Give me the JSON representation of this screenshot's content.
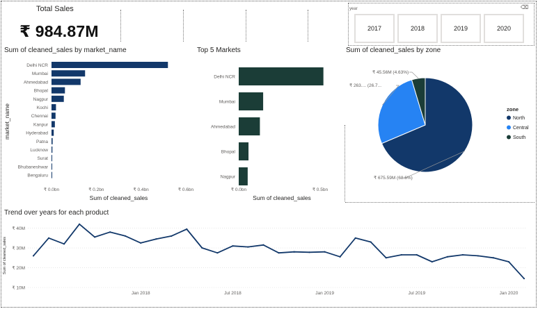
{
  "card": {
    "title": "Total Sales",
    "value": "₹ 984.87M"
  },
  "slicer": {
    "header": "year",
    "eraser": "⌫",
    "years": [
      "2017",
      "2018",
      "2019",
      "2020"
    ]
  },
  "market_chart": {
    "title": "Sum of cleaned_sales by market_name",
    "ylabel": "market_name",
    "xlabel": "Sum of cleaned_sales",
    "categories": [
      "Delhi NCR",
      "Mumbai",
      "Ahmedabad",
      "Bhopal",
      "Nagpur",
      "Kochi",
      "Chennai",
      "Kanpur",
      "Hyderabad",
      "Patna",
      "Lucknow",
      "Surat",
      "Bhubaneshwar",
      "Bengaluru"
    ],
    "values": [
      0.52,
      0.15,
      0.13,
      0.06,
      0.055,
      0.02,
      0.018,
      0.015,
      0.01,
      0.005,
      0.004,
      0.003,
      0.002,
      0.001
    ],
    "ticks": [
      "₹ 0.0bn",
      "₹ 0.2bn",
      "₹ 0.4bn",
      "₹ 0.6bn"
    ],
    "tick_values": [
      0,
      0.2,
      0.4,
      0.6
    ],
    "xmax": 0.6,
    "color": "#12386a"
  },
  "top5_chart": {
    "title": "Top 5 Markets",
    "xlabel": "Sum of cleaned_sales",
    "categories": [
      "Delhi NCR",
      "Mumbai",
      "Ahmedabad",
      "Bhopal",
      "Nagpur"
    ],
    "values": [
      0.52,
      0.15,
      0.13,
      0.06,
      0.055
    ],
    "ticks": [
      "₹ 0.0bn",
      "₹ 0.5bn"
    ],
    "tick_values": [
      0,
      0.5
    ],
    "xmax": 0.53,
    "color": "#1b3d37"
  },
  "zone_chart": {
    "title": "Sum of cleaned_sales by zone",
    "legend_title": "zone",
    "slices": [
      {
        "name": "North",
        "value": 675.59,
        "label": "₹ 675.59M (68.6%)",
        "color": "#12386a"
      },
      {
        "name": "Central",
        "value": 263.72,
        "label": "₹ 263.... (26.7...",
        "color": "#2683f3"
      },
      {
        "name": "South",
        "value": 45.56,
        "label": "₹ 45.56M (4.63%)",
        "color": "#1b3d37"
      }
    ]
  },
  "trend_chart": {
    "title": "Trend over years for each product",
    "ylabel": "Sum of cleaned_sales",
    "y_ticks": [
      "₹ 10M",
      "₹ 20M",
      "₹ 30M",
      "₹ 40M"
    ],
    "y_tick_values": [
      10,
      20,
      30,
      40
    ],
    "ylim": [
      10,
      43
    ],
    "x_ticks": [
      "Jan 2018",
      "Jul 2018",
      "Jan 2019",
      "Jul 2019",
      "Jan 2020"
    ],
    "x_tick_index": [
      7,
      13,
      19,
      25,
      31
    ],
    "values": [
      26,
      35,
      32,
      42,
      35.5,
      38,
      36,
      32.5,
      34.5,
      36,
      39.5,
      30,
      27.5,
      31,
      30.5,
      31.5,
      27.5,
      28,
      27.8,
      28,
      25.5,
      35,
      33,
      25,
      26.5,
      26.5,
      23,
      25.5,
      26.5,
      26,
      25,
      23,
      14.5
    ],
    "color": "#12386a"
  }
}
